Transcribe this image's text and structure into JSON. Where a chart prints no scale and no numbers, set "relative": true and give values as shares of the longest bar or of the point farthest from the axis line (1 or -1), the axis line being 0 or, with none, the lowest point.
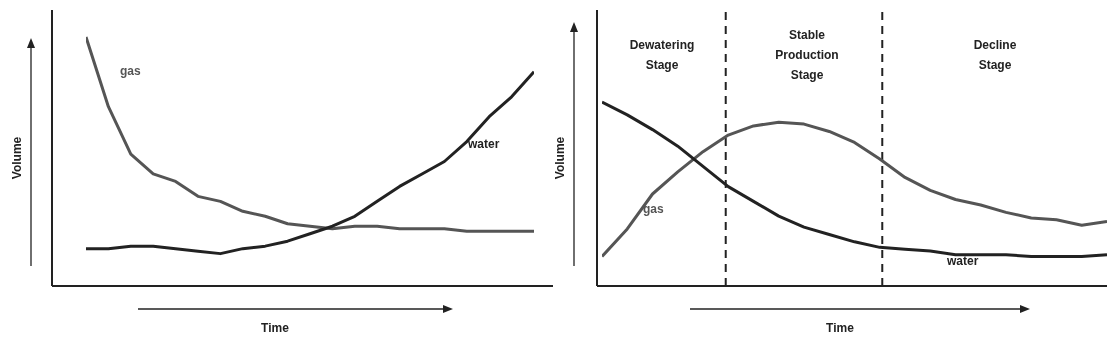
{
  "chart_data": [
    {
      "type": "line",
      "relative": true,
      "xlabel": "Time",
      "ylabel": "Volume",
      "categories": [
        null,
        null,
        null,
        null,
        null,
        null,
        null,
        null,
        null,
        null,
        null,
        null,
        null,
        null,
        null,
        null,
        null,
        null,
        null,
        null,
        null
      ],
      "series": [
        {
          "name": "gas",
          "color": "#555555",
          "values": [
            1.0,
            0.72,
            0.53,
            0.45,
            0.42,
            0.36,
            0.34,
            0.3,
            0.28,
            0.25,
            0.24,
            0.23,
            0.24,
            0.24,
            0.23,
            0.23,
            0.23,
            0.22,
            0.22,
            0.22,
            0.22
          ]
        },
        {
          "name": "water",
          "color": "#222222",
          "values": [
            0.15,
            0.15,
            0.16,
            0.16,
            0.15,
            0.14,
            0.13,
            0.15,
            0.16,
            0.18,
            0.21,
            0.24,
            0.28,
            0.34,
            0.4,
            0.45,
            0.5,
            0.58,
            0.68,
            0.76,
            0.86
          ]
        }
      ]
    },
    {
      "type": "line",
      "relative": true,
      "xlabel": "Time",
      "ylabel": "Volume",
      "categories": [
        null,
        null,
        null,
        null,
        null,
        null,
        null,
        null,
        null,
        null,
        null,
        null,
        null,
        null,
        null,
        null,
        null,
        null,
        null,
        null,
        null
      ],
      "series": [
        {
          "name": "gas",
          "color": "#555555",
          "values": [
            0.16,
            0.31,
            0.5,
            0.62,
            0.73,
            0.82,
            0.87,
            0.89,
            0.88,
            0.84,
            0.78,
            0.69,
            0.59,
            0.52,
            0.47,
            0.44,
            0.4,
            0.37,
            0.36,
            0.33,
            0.35
          ]
        },
        {
          "name": "water",
          "color": "#222222",
          "values": [
            1.0,
            0.93,
            0.85,
            0.76,
            0.65,
            0.54,
            0.46,
            0.38,
            0.32,
            0.28,
            0.24,
            0.21,
            0.2,
            0.19,
            0.17,
            0.17,
            0.17,
            0.16,
            0.16,
            0.16,
            0.17
          ]
        }
      ],
      "annotations": [
        "Dewatering Stage",
        "Stable Production Stage",
        "Decline Stage"
      ]
    }
  ]
}
